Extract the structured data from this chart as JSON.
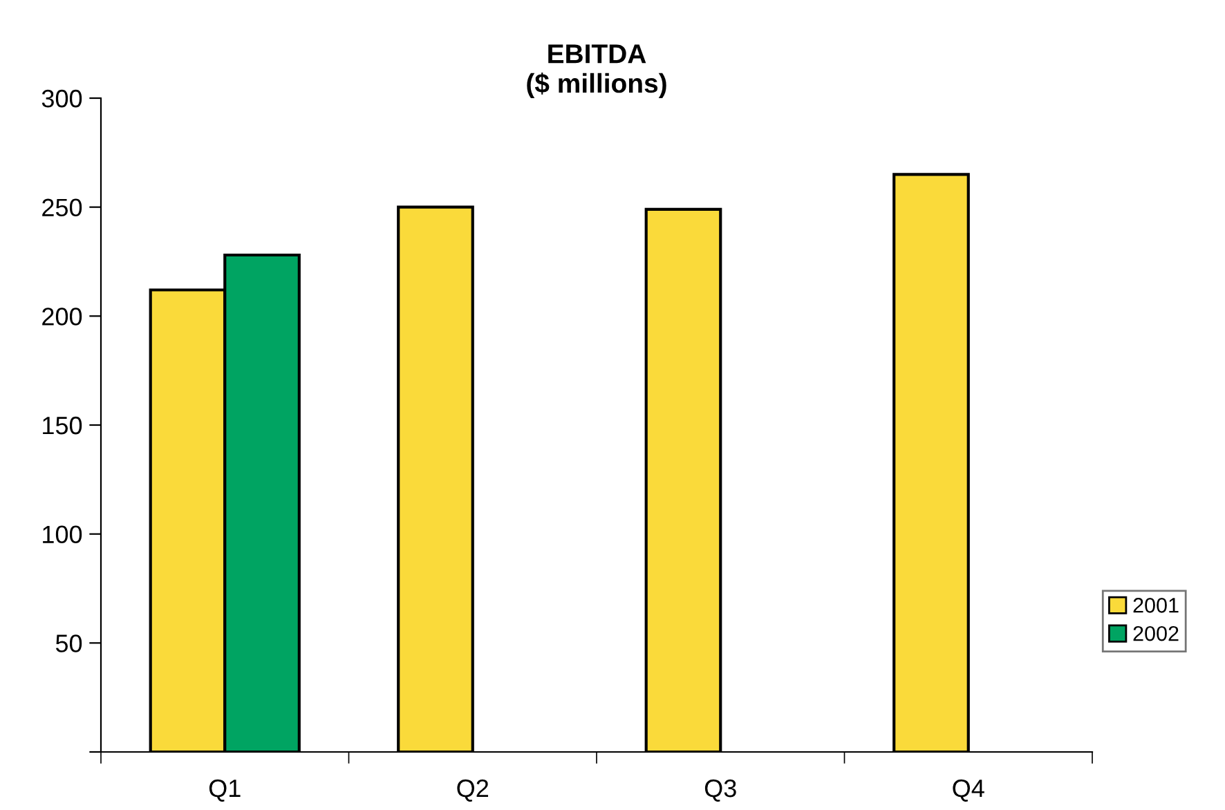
{
  "chart_data": {
    "type": "bar",
    "title": "EBITDA\n($ millions)",
    "categories": [
      "Q1",
      "Q2",
      "Q3",
      "Q4"
    ],
    "series": [
      {
        "name": "2001",
        "color": "#fada3a",
        "values": [
          212,
          250,
          249,
          265
        ]
      },
      {
        "name": "2002",
        "color": "#00a462",
        "values": [
          228,
          null,
          null,
          null
        ]
      }
    ],
    "ylim": [
      0,
      300
    ],
    "yticks": [
      {
        "value": 0,
        "label": null
      },
      50,
      100,
      150,
      200,
      250,
      300
    ],
    "grid": false,
    "legend": "right"
  }
}
